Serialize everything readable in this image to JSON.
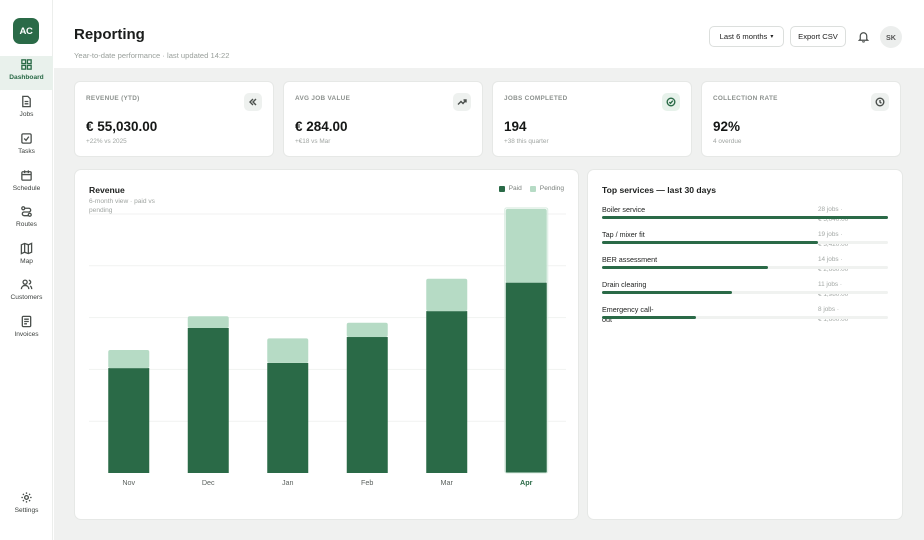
{
  "app": {
    "logo": "AC"
  },
  "sidebar": {
    "items": [
      {
        "label": "Dashboard",
        "icon": "dashboard-icon",
        "active": true
      },
      {
        "label": "Jobs",
        "icon": "document-icon"
      },
      {
        "label": "Tasks",
        "icon": "checkbox-icon"
      },
      {
        "label": "Schedule",
        "icon": "calendar-icon"
      },
      {
        "label": "Routes",
        "icon": "route-icon"
      },
      {
        "label": "Map",
        "icon": "map-icon"
      },
      {
        "label": "Customers",
        "icon": "users-icon"
      },
      {
        "label": "Invoices",
        "icon": "invoice-icon"
      }
    ],
    "settings": {
      "label": "Settings",
      "icon": "gear-icon"
    }
  },
  "header": {
    "title": "Reporting",
    "subtitle": "Year-to-date performance · last updated 14:22",
    "range_select": "Last 6 months",
    "export_label": "Export CSV",
    "avatar_initials": "SK"
  },
  "kpis": [
    {
      "label": "REVENUE (YTD)",
      "value": "€ 55,030.00",
      "sub": "+22% vs 2025",
      "icon": "chevrons-left-icon",
      "accent": false
    },
    {
      "label": "AVG JOB VALUE",
      "value": "€ 284.00",
      "sub": "+€18 vs Mar",
      "icon": "trend-up-icon",
      "accent": false
    },
    {
      "label": "JOBS COMPLETED",
      "value": "194",
      "sub": "+38 this quarter",
      "icon": "check-circle-icon",
      "accent": true
    },
    {
      "label": "COLLECTION RATE",
      "value": "92%",
      "sub": "4 overdue",
      "icon": "clock-icon",
      "accent": false
    }
  ],
  "revenue_card": {
    "title": "Revenue",
    "subtitle": "6-month view · paid vs pending",
    "legend": [
      {
        "name": "Paid",
        "color": "#2a6a47"
      },
      {
        "name": "Pending",
        "color": "#b6dbc5"
      }
    ]
  },
  "chart_data": {
    "type": "bar",
    "stacked": true,
    "categories": [
      "Nov",
      "Dec",
      "Jan",
      "Feb",
      "Mar",
      "Apr"
    ],
    "series": [
      {
        "name": "Paid",
        "values": [
          40.5,
          56,
          42.5,
          52.5,
          62.5,
          73.5
        ],
        "color": "#2a6a47"
      },
      {
        "name": "Pending",
        "values": [
          7,
          4.5,
          9.5,
          5.5,
          12.5,
          28.5
        ],
        "color": "#b6dbc5"
      }
    ],
    "ylim": [
      0,
      100
    ],
    "grid": true,
    "legend_position": "top-right",
    "highlight_category": "Apr"
  },
  "services_card": {
    "title": "Top services — last 30 days",
    "items": [
      {
        "name": "Boiler service",
        "jobs": "28 jobs ·",
        "amount": "€ 5,040.00",
        "share": 1.0
      },
      {
        "name": "Tap / mixer fit",
        "jobs": "19 jobs ·",
        "amount": "€ 3,420.00",
        "share": 0.755
      },
      {
        "name": "BER assessment",
        "jobs": "14 jobs ·",
        "amount": "€ 2,660.00",
        "share": 0.58
      },
      {
        "name": "Drain clearing",
        "jobs": "11 jobs ·",
        "amount": "€ 1,980.00",
        "share": 0.455
      },
      {
        "name": "Emergency call-out",
        "jobs": "8 jobs ·",
        "amount": "€ 1,600.00",
        "share": 0.33
      }
    ]
  },
  "colors": {
    "accent": "#2a6a47",
    "pending": "#b6dbc5",
    "background": "#f0f1f0"
  }
}
